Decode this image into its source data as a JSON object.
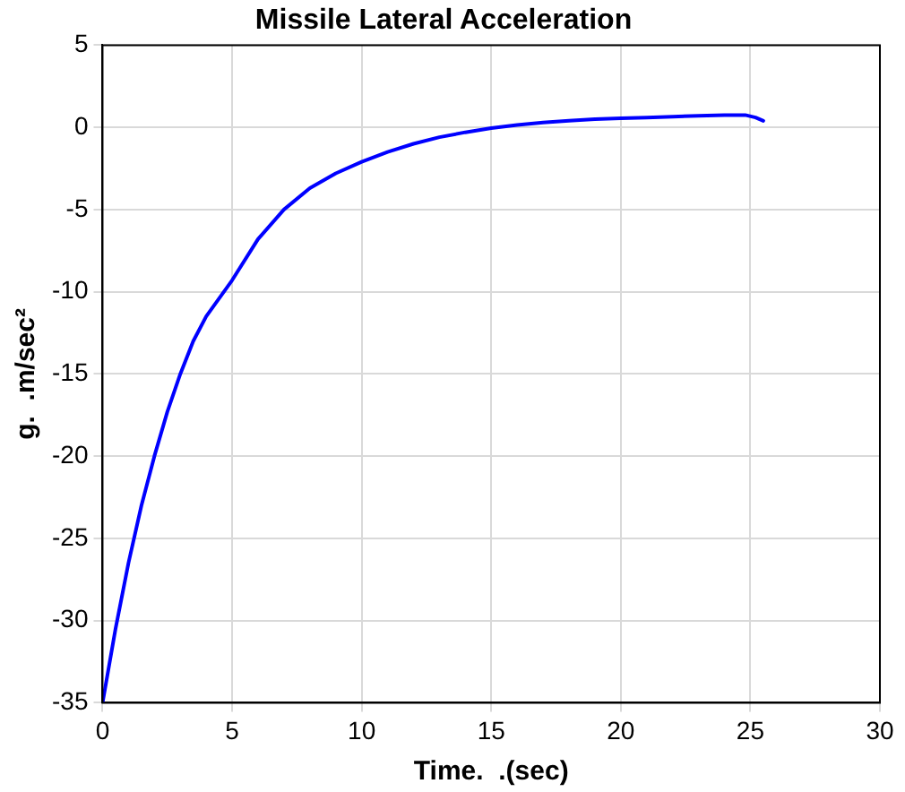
{
  "chart_data": {
    "type": "line",
    "title": "Missile Lateral Acceleration",
    "xlabel": "Time.  .(sec)",
    "ylabel": "g.  .m/sec²",
    "x": [
      0,
      0.5,
      1,
      1.5,
      2,
      2.5,
      3,
      3.5,
      4,
      5,
      6,
      7,
      8,
      9,
      10,
      11,
      12,
      13,
      14,
      15,
      16,
      17,
      18,
      19,
      20,
      21,
      22,
      23,
      24,
      24.8,
      25.2,
      25.5
    ],
    "series": [
      {
        "color": "#0000ff",
        "values": [
          -35,
          -30.5,
          -26.5,
          -23,
          -20,
          -17.3,
          -15,
          -13,
          -11.5,
          -9.3,
          -6.8,
          -5,
          -3.7,
          -2.8,
          -2.1,
          -1.5,
          -1,
          -0.6,
          -0.3,
          -0.05,
          0.15,
          0.3,
          0.4,
          0.5,
          0.55,
          0.6,
          0.65,
          0.7,
          0.75,
          0.75,
          0.6,
          0.4
        ]
      }
    ],
    "xlim": [
      0,
      30
    ],
    "xticks": [
      0,
      5,
      10,
      15,
      20,
      25,
      30
    ],
    "ylim": [
      -35,
      5
    ],
    "yticks": [
      -35,
      -30,
      -25,
      -20,
      -15,
      -10,
      -5,
      0,
      5
    ],
    "grid": true,
    "legend": false,
    "marker": "none",
    "line_style": "solid"
  }
}
